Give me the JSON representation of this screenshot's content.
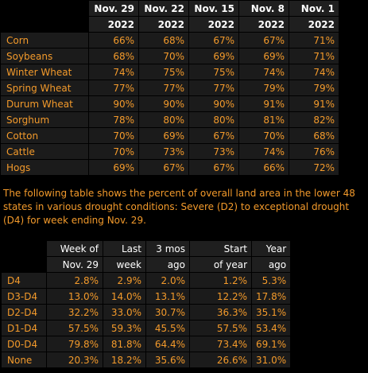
{
  "progress_table": {
    "headers_top": [
      "Nov. 29",
      "Nov. 22",
      "Nov. 15",
      "Nov. 8",
      "Nov. 1"
    ],
    "headers_year": [
      "2022",
      "2022",
      "2022",
      "2022",
      "2022"
    ],
    "rows": [
      {
        "label": "Corn",
        "values": [
          "66%",
          "68%",
          "67%",
          "67%",
          "71%"
        ]
      },
      {
        "label": "Soybeans",
        "values": [
          "68%",
          "70%",
          "69%",
          "69%",
          "71%"
        ]
      },
      {
        "label": "Winter Wheat",
        "values": [
          "74%",
          "75%",
          "75%",
          "74%",
          "74%"
        ]
      },
      {
        "label": "Spring Wheat",
        "values": [
          "77%",
          "77%",
          "77%",
          "79%",
          "79%"
        ]
      },
      {
        "label": "Durum Wheat",
        "values": [
          "90%",
          "90%",
          "90%",
          "91%",
          "91%"
        ]
      },
      {
        "label": "Sorghum",
        "values": [
          "78%",
          "80%",
          "80%",
          "81%",
          "82%"
        ]
      },
      {
        "label": "Cotton",
        "values": [
          "70%",
          "69%",
          "67%",
          "70%",
          "68%"
        ]
      },
      {
        "label": "Cattle",
        "values": [
          "70%",
          "73%",
          "73%",
          "74%",
          "76%"
        ]
      },
      {
        "label": "Hogs",
        "values": [
          "69%",
          "67%",
          "67%",
          "66%",
          "72%"
        ]
      }
    ]
  },
  "caption": "The following table shows the percent of overall land area in the lower 48 states in various drought conditions: Severe (D2) to exceptional drought (D4) for week ending Nov. 29.",
  "drought_table": {
    "headers_top": [
      "Week of",
      "Last",
      "3 mos",
      "Start",
      "Year"
    ],
    "headers_bottom": [
      "Nov. 29",
      "week",
      "ago",
      "of year",
      "ago"
    ],
    "rows": [
      {
        "label": "D4",
        "values": [
          "2.8%",
          "2.9%",
          "2.0%",
          "1.2%",
          "5.3%"
        ]
      },
      {
        "label": "D3-D4",
        "values": [
          "13.0%",
          "14.0%",
          "13.1%",
          "12.2%",
          "17.8%"
        ]
      },
      {
        "label": "D2-D4",
        "values": [
          "32.2%",
          "33.0%",
          "30.7%",
          "36.3%",
          "35.1%"
        ]
      },
      {
        "label": "D1-D4",
        "values": [
          "57.5%",
          "59.3%",
          "45.5%",
          "57.5%",
          "53.4%"
        ]
      },
      {
        "label": "D0-D4",
        "values": [
          "79.8%",
          "81.8%",
          "64.4%",
          "73.4%",
          "69.1%"
        ]
      },
      {
        "label": "None",
        "values": [
          "20.3%",
          "18.2%",
          "35.6%",
          "26.6%",
          "31.0%"
        ]
      }
    ]
  }
}
